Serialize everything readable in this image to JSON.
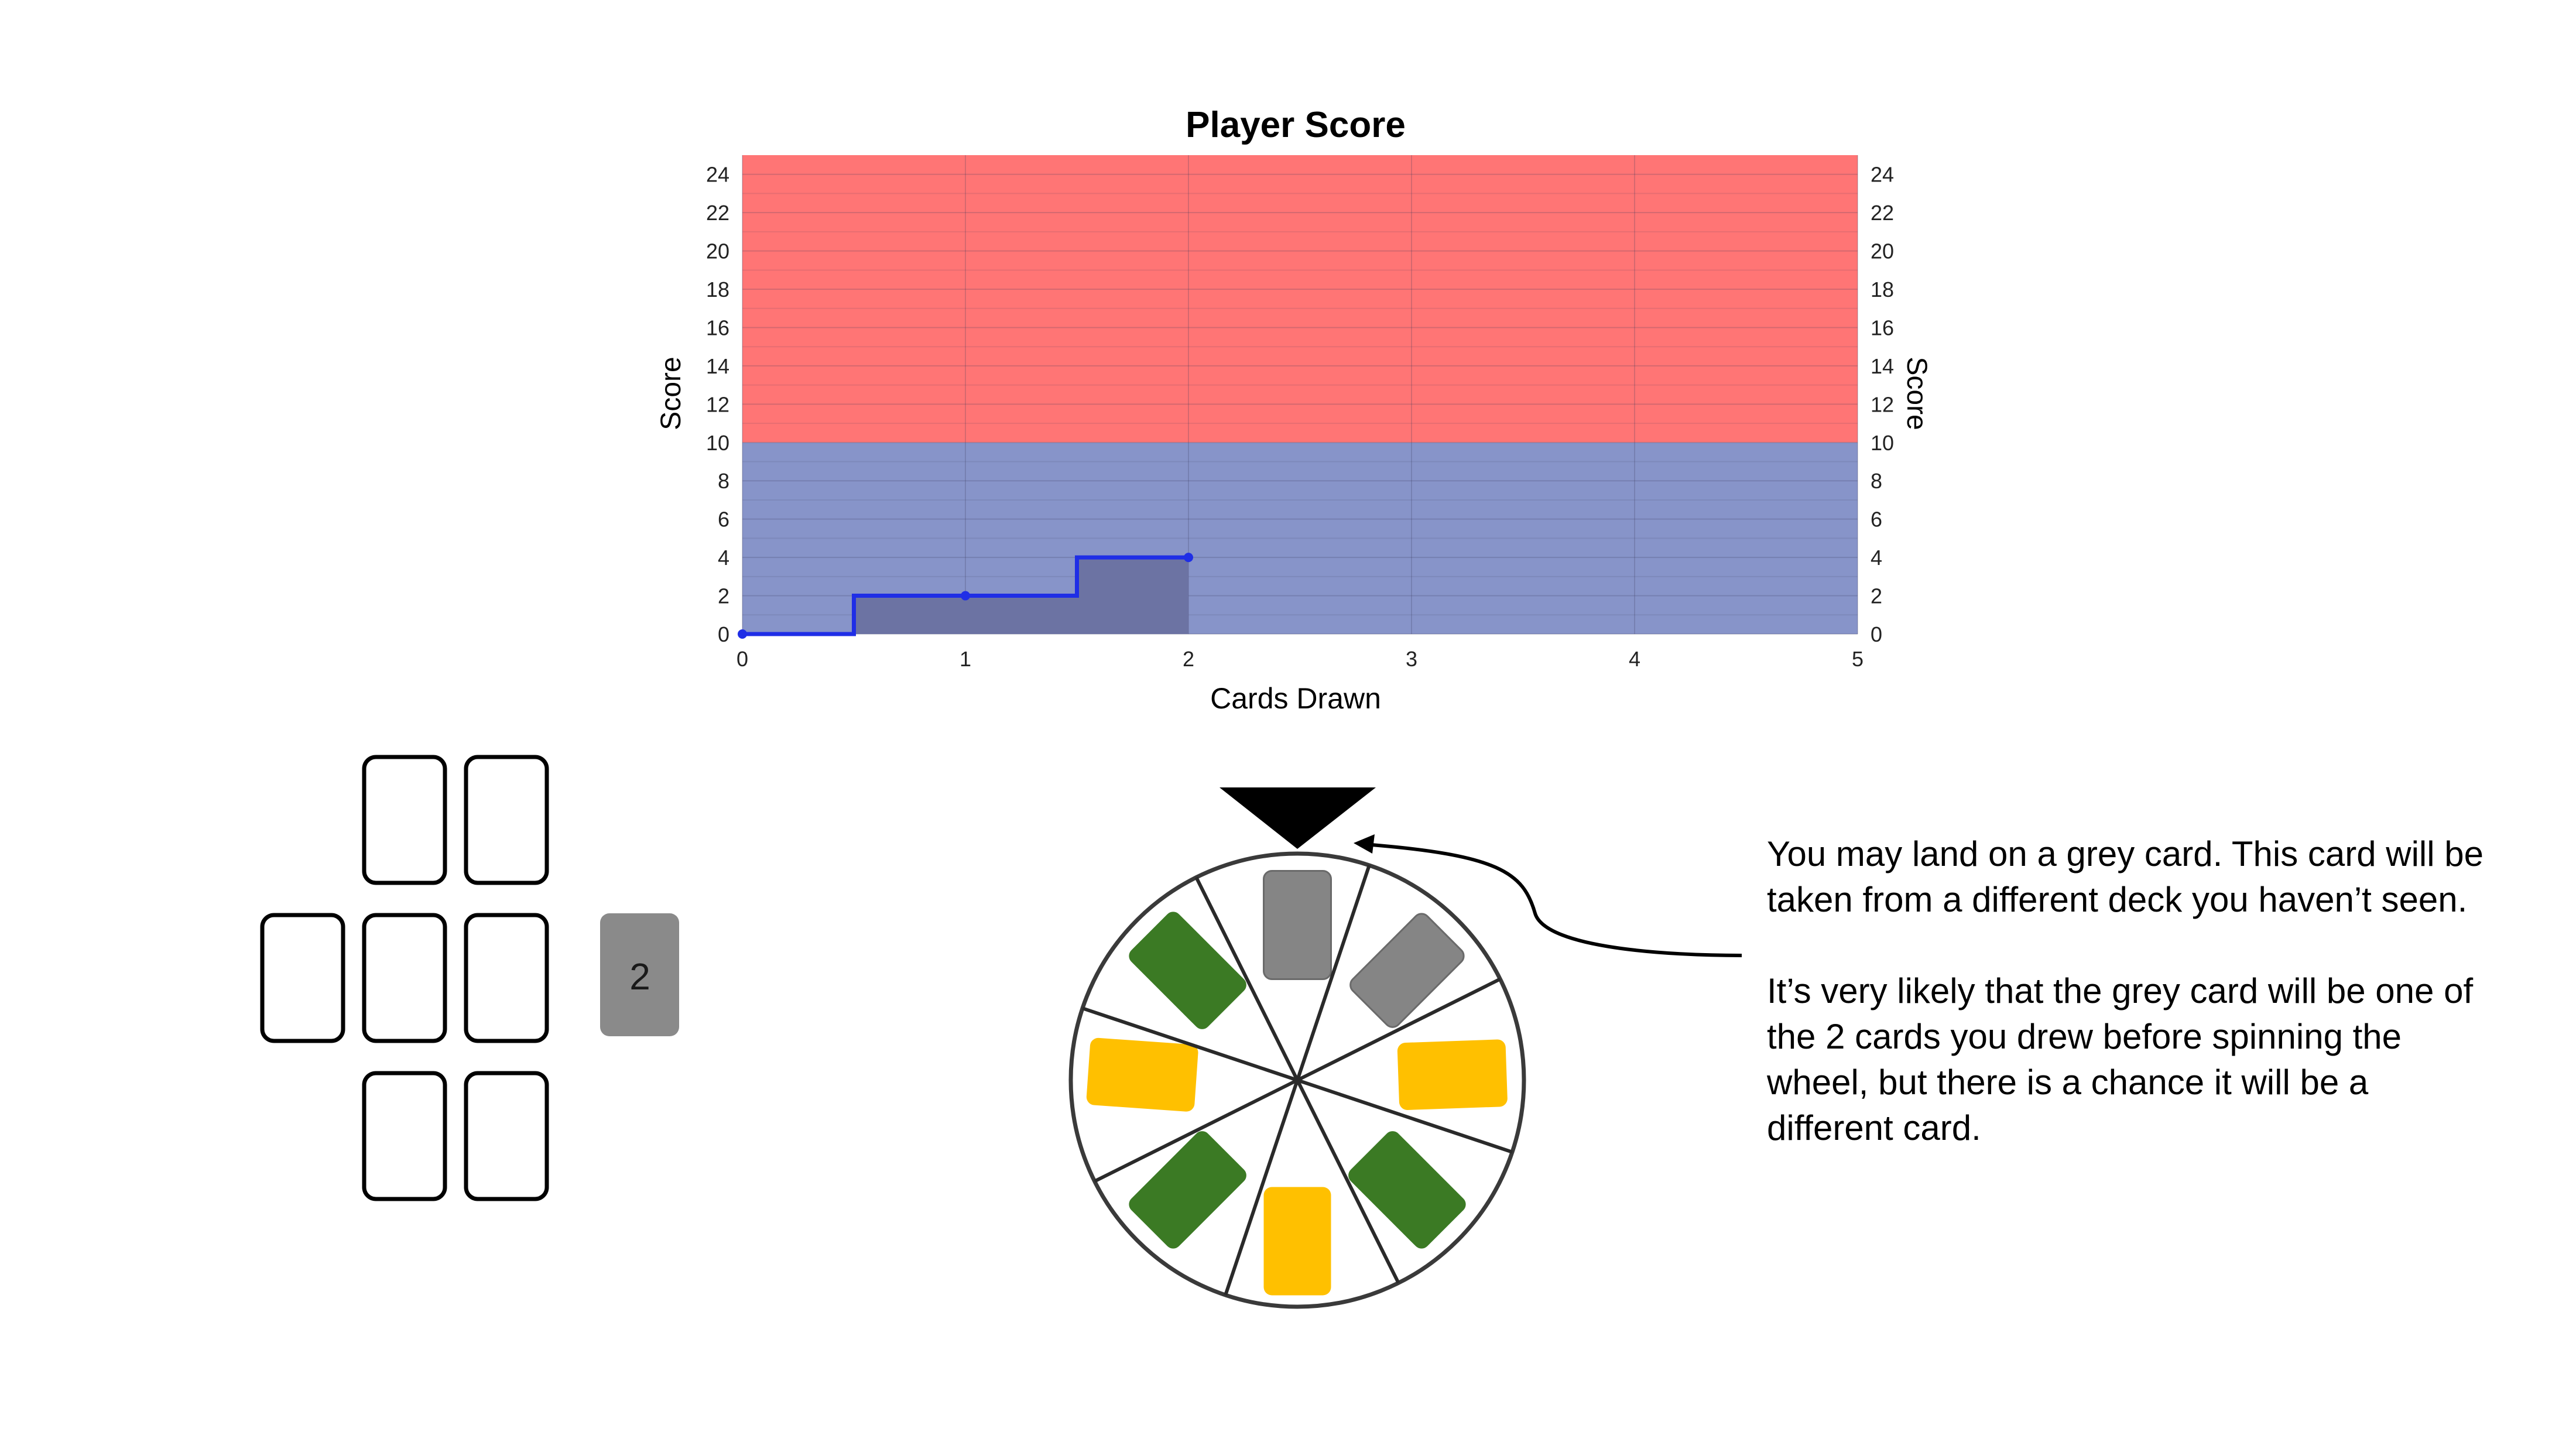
{
  "chart_data": {
    "type": "line",
    "title": "Player Score",
    "xlabel": "Cards Drawn",
    "ylabel": "Score",
    "ylabel_right": "Score",
    "xlim": [
      0,
      5
    ],
    "ylim": [
      0,
      25
    ],
    "x_ticks": [
      "0",
      "1",
      "2",
      "3",
      "4",
      "5"
    ],
    "y_ticks": [
      "0",
      "2",
      "4",
      "6",
      "8",
      "10",
      "12",
      "14",
      "16",
      "18",
      "20",
      "22",
      "24"
    ],
    "grid": true,
    "step": "mid",
    "zones": [
      {
        "from": 0,
        "to": 10,
        "color": "#8794c9"
      },
      {
        "from": 10,
        "to": 25,
        "color": "#ff7575"
      }
    ],
    "series": [
      {
        "x": [
          0,
          1,
          2
        ],
        "y": [
          0,
          2,
          4
        ],
        "color": "#1f2ee6",
        "fill": "#6c73a3"
      }
    ]
  },
  "cards": {
    "drawn_value": "2",
    "slot_color": "#000000",
    "drawn_color": "#8a8a8a"
  },
  "wheel": {
    "pointer_color": "#000000",
    "segments": [
      {
        "card": "grey"
      },
      {
        "card": "grey"
      },
      {
        "card": "yellow"
      },
      {
        "card": "green"
      },
      {
        "card": "yellow"
      },
      {
        "card": "green"
      },
      {
        "card": "yellow"
      },
      {
        "card": "green"
      }
    ],
    "colors": {
      "grey": "#858585",
      "green": "#3b7a24",
      "yellow": "#ffc000"
    }
  },
  "annotation": {
    "paragraph1": "You may land on a grey card. This card will be taken from a different deck you haven’t seen.",
    "paragraph2": "It’s very likely that the grey card will be one of the 2 cards you drew before spinning the wheel, but there is a chance it will be a different card."
  }
}
